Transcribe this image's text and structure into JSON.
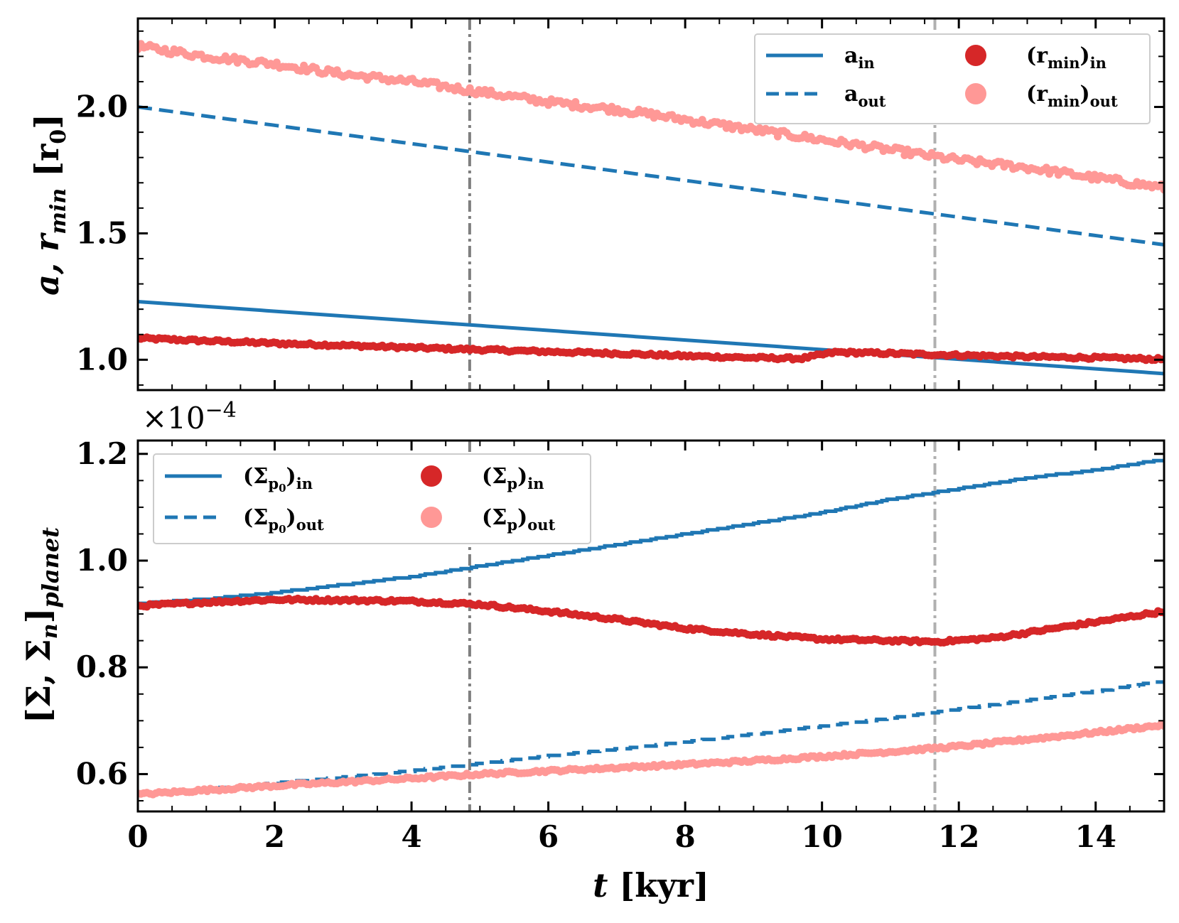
{
  "chart_data": [
    {
      "type": "line",
      "panel": "top",
      "ylabel": "a, r",
      "ylabel_sub": "min",
      "ylabel_unit": "[r",
      "ylabel_unit_sub": "0",
      "ylabel_unit_close": "]",
      "xlim": [
        0,
        15
      ],
      "ylim": [
        0.88,
        2.35
      ],
      "xticks": [
        0,
        2,
        4,
        6,
        8,
        10,
        12,
        14
      ],
      "yticks": [
        1.0,
        1.5,
        2.0
      ],
      "ytick_labels": [
        "1.0",
        "1.5",
        "2.0"
      ],
      "vlines": [
        {
          "x": 4.85,
          "color": "#7f7f7f"
        },
        {
          "x": 11.65,
          "color": "#b0b0b0"
        }
      ],
      "legend_position": "top-right",
      "series": [
        {
          "key": "a_in",
          "name": "a",
          "sub": "in",
          "style": "solid",
          "color": "#1f77b4",
          "x": [
            0,
            15
          ],
          "y": [
            1.23,
            0.945
          ]
        },
        {
          "key": "a_out",
          "name": "a",
          "sub": "out",
          "style": "dashed",
          "color": "#1f77b4",
          "x": [
            0,
            15
          ],
          "y": [
            2.0,
            1.455
          ]
        },
        {
          "key": "rmin_in",
          "name": "(r",
          "sub": "min",
          "tail": ")",
          "tail_sub": "in",
          "style": "markers",
          "color": "#d62728",
          "x": [
            0,
            1,
            2,
            3,
            4,
            5,
            6,
            7,
            8,
            9,
            9.7,
            10.2,
            11,
            12,
            13,
            14,
            15
          ],
          "y": [
            1.085,
            1.075,
            1.065,
            1.057,
            1.048,
            1.04,
            1.032,
            1.025,
            1.015,
            1.008,
            1.005,
            1.03,
            1.025,
            1.018,
            1.012,
            1.008,
            1.002
          ]
        },
        {
          "key": "rmin_out",
          "name": "(r",
          "sub": "min",
          "tail": ")",
          "tail_sub": "out",
          "style": "markers",
          "color": "#ff9896",
          "x": [
            0,
            1,
            2,
            3,
            4,
            5,
            6,
            7,
            8,
            9,
            10,
            11,
            12,
            13,
            14,
            15
          ],
          "y": [
            2.24,
            2.2,
            2.17,
            2.13,
            2.1,
            2.06,
            2.02,
            1.99,
            1.95,
            1.91,
            1.87,
            1.83,
            1.79,
            1.76,
            1.72,
            1.68
          ]
        }
      ]
    },
    {
      "type": "line",
      "panel": "bottom",
      "ylabel": "[Σ, Σ",
      "ylabel_n": "n",
      "ylabel_close": "]",
      "ylabel_sub": "planet",
      "xlabel": "t",
      "xlabel_unit": "[kyr]",
      "offset_text": "×10",
      "offset_exp": "−4",
      "xlim": [
        0,
        15
      ],
      "ylim": [
        0.53,
        1.225
      ],
      "xticks": [
        0,
        2,
        4,
        6,
        8,
        10,
        12,
        14
      ],
      "xtick_labels": [
        "0",
        "2",
        "4",
        "6",
        "8",
        "10",
        "12",
        "14"
      ],
      "yticks": [
        0.6,
        0.8,
        1.0,
        1.2
      ],
      "ytick_labels": [
        "0.6",
        "0.8",
        "1.0",
        "1.2"
      ],
      "vlines": [
        {
          "x": 4.85,
          "color": "#7f7f7f"
        },
        {
          "x": 11.65,
          "color": "#b0b0b0"
        }
      ],
      "legend_position": "top-left",
      "series": [
        {
          "key": "sp0_in",
          "name": "(Σ",
          "sub": "p",
          "subsub": "0",
          "tail": ")",
          "tail_sub": "in",
          "style": "solid",
          "color": "#1f77b4",
          "x": [
            0,
            1,
            2,
            3,
            4,
            5,
            6,
            7,
            8,
            9,
            10,
            11,
            12,
            13,
            14,
            15
          ],
          "y": [
            0.92,
            0.928,
            0.94,
            0.955,
            0.97,
            0.99,
            1.01,
            1.03,
            1.05,
            1.07,
            1.09,
            1.115,
            1.135,
            1.155,
            1.17,
            1.19
          ]
        },
        {
          "key": "sp0_out",
          "name": "(Σ",
          "sub": "p",
          "subsub": "0",
          "tail": ")",
          "tail_sub": "out",
          "style": "dashed",
          "color": "#1f77b4",
          "x": [
            0,
            1,
            2,
            3,
            4,
            5,
            6,
            7,
            8,
            9,
            10,
            11,
            12,
            13,
            14,
            15
          ],
          "y": [
            0.562,
            0.572,
            0.583,
            0.594,
            0.606,
            0.62,
            0.634,
            0.647,
            0.66,
            0.675,
            0.69,
            0.705,
            0.722,
            0.738,
            0.755,
            0.775
          ]
        },
        {
          "key": "sp_in",
          "name": "(Σ",
          "sub": "p",
          "tail": ")",
          "tail_sub": "in",
          "style": "markers",
          "color": "#d62728",
          "x": [
            0,
            1,
            2,
            3,
            4,
            5,
            6,
            7,
            8,
            9,
            10,
            11,
            11.7,
            12.5,
            13,
            14,
            15
          ],
          "y": [
            0.915,
            0.922,
            0.927,
            0.926,
            0.924,
            0.918,
            0.905,
            0.89,
            0.873,
            0.862,
            0.853,
            0.85,
            0.848,
            0.855,
            0.865,
            0.885,
            0.905
          ]
        },
        {
          "key": "sp_out",
          "name": "(Σ",
          "sub": "p",
          "tail": ")",
          "tail_sub": "out",
          "style": "markers",
          "color": "#ff9896",
          "x": [
            0,
            1,
            2,
            3,
            4,
            5,
            6,
            7,
            8,
            9,
            10,
            11,
            12,
            13,
            14,
            15
          ],
          "y": [
            0.562,
            0.57,
            0.578,
            0.585,
            0.592,
            0.6,
            0.606,
            0.612,
            0.618,
            0.625,
            0.633,
            0.642,
            0.652,
            0.665,
            0.678,
            0.692
          ]
        }
      ]
    }
  ]
}
